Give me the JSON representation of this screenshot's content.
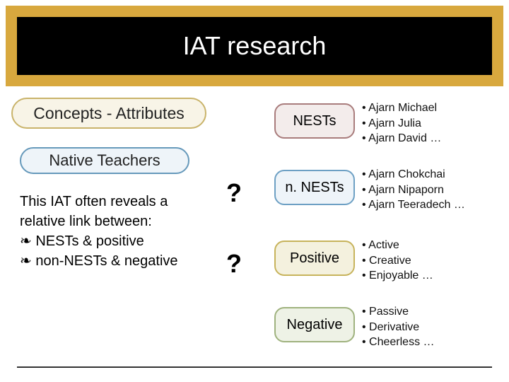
{
  "colors": {
    "title_bg": "#d8a83e",
    "title_inner_bg": "#000000",
    "concepts_fill": "#f8f4e7",
    "concepts_border": "#c9b36a",
    "native_fill": "#eef4f9",
    "native_border": "#6699bb",
    "nests_fill": "#f3eceb",
    "nests_border": "#a97c7c",
    "nnests_fill": "#eef4f9",
    "nnests_border": "#6da0c4",
    "positive_fill": "#f4f1de",
    "positive_border": "#c7b35b",
    "negative_fill": "#eef2e6",
    "negative_border": "#9fb27e"
  },
  "title": "IAT research",
  "concepts_label": "Concepts - Attributes",
  "native_label": "Native Teachers",
  "body": {
    "line1": "This IAT often reveals a",
    "line2": "relative link between:",
    "b1": "NESTs & positive",
    "b2": "non-NESTs & negative"
  },
  "q1": "?",
  "q2": "?",
  "chips": {
    "nests": "NESTs",
    "nnests": "n. NESTs",
    "positive": "Positive",
    "negative": "Negative"
  },
  "attrs": {
    "nests": [
      "Ajarn Michael",
      "Ajarn Julia",
      "Ajarn David …"
    ],
    "nnests": [
      "Ajarn Chokchai",
      "Ajarn Nipaporn",
      "Ajarn Teeradech …"
    ],
    "positive": [
      "Active",
      "Creative",
      "Enjoyable …"
    ],
    "negative": [
      "Passive",
      "Derivative",
      "Cheerless …"
    ]
  }
}
